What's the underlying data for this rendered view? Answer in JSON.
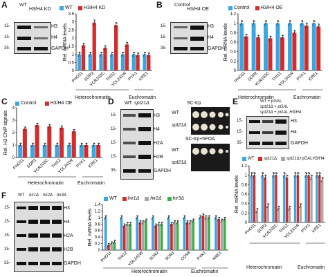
{
  "colors": {
    "wt": "#3aa7e2",
    "red": "#d42b2b",
    "gray": "#a8a8a8",
    "green": "#3bb04a",
    "cyan": "#2fb6c6"
  },
  "panelA": {
    "label": "A",
    "blot": {
      "lanes": [
        "WT",
        "H3/H4 KD"
      ],
      "rows": [
        "H3",
        "H4",
        "GAPDH"
      ],
      "markers": [
        "15-",
        "15-",
        "35-"
      ]
    },
    "legend": [
      "WT",
      "H3/H4 KD"
    ],
    "ylabel": "Rel. mRNA levels",
    "yticks": [
      "0",
      "0.5",
      "1",
      "1.5",
      "2",
      "2.5",
      "3",
      "3.5"
    ],
    "groups": [
      "Heterochromatin",
      "Euchromatin"
    ]
  },
  "panelB": {
    "label": "B",
    "blot": {
      "lanes": [
        "Control",
        "H3/H4 OE"
      ],
      "rows": [
        "H3",
        "H4",
        "GAPDH"
      ],
      "markers": [
        "15-",
        "15-",
        "35-"
      ]
    },
    "legend": [
      "Control",
      "H3/H4 OE"
    ],
    "ylabel": "Rel. mRNA levels",
    "yticks": [
      "0",
      "0.2",
      "0.4",
      "0.6",
      "0.8",
      "1",
      "1.2"
    ],
    "groups": [
      "Heterochromatin",
      "Euchromatin"
    ]
  },
  "panelC": {
    "label": "C",
    "legend": [
      "Control",
      "H3/H4 OE"
    ],
    "ylabel": "Rel. H3 ChIP signals",
    "yticks": [
      "0",
      "1",
      "2",
      "3",
      "4"
    ],
    "groups": [
      "Heterochromatin",
      "Euchromatin"
    ]
  },
  "panelD": {
    "label": "D",
    "blot": {
      "lanes": [
        "WT",
        "spt21Δ"
      ],
      "rows": [
        "H3",
        "H4",
        "H2A",
        "H2B",
        "GAPDH"
      ],
      "markers": [
        "15-",
        "15-",
        "15-",
        "15-",
        "35-"
      ]
    },
    "plates": [
      {
        "title": "SC-trp",
        "rows": [
          "WT",
          "spt21Δ"
        ]
      },
      {
        "title": "SC-trp+5FOA",
        "rows": [
          "WT",
          "spt21Δ"
        ]
      }
    ]
  },
  "panelE": {
    "label": "E",
    "blot": {
      "lanes": [
        "WT + pGAL",
        "spt21Δ + pGAL",
        "spt21Δ + pGAL H3/H4"
      ],
      "rows": [
        "H3",
        "H4",
        "GAPDH"
      ],
      "markers": [
        "15-",
        "15-",
        "35-"
      ]
    },
    "legend": [
      "WT",
      "spt21Δ",
      "spt21Δ+pGALH3/H4"
    ],
    "ylabel": "Rel. mRNA levels",
    "yticks": [
      "0",
      "0.2",
      "0.4",
      "0.6",
      "0.8",
      "1",
      "1.2"
    ],
    "groups": [
      "Heterochromatin",
      "Euchromatin"
    ]
  },
  "panelF": {
    "label": "F",
    "blot": {
      "lanes": [
        "WT",
        "hir1Δ",
        "hir2Δ",
        "hir3Δ"
      ],
      "rows": [
        "H3",
        "H4",
        "H2A",
        "H2B",
        "GAPDH"
      ],
      "markers": [
        "15-",
        "15-",
        "15-",
        "15-",
        "35-"
      ]
    },
    "legend": [
      "WT",
      "hir1Δ",
      "hir2Δ",
      "hir3Δ"
    ],
    "ylabel": "Rel. mRNA levels",
    "yticks": [
      "0",
      "0.2",
      "0.4",
      "0.6",
      "0.8",
      "1",
      "1.2",
      "1.4"
    ],
    "groups": [
      "Heterochromatin",
      "Euchromatin"
    ]
  },
  "chart_data": [
    {
      "panel": "A",
      "type": "bar",
      "ylabel": "Rel. mRNA levels",
      "ylim": [
        0,
        3.5
      ],
      "categories": [
        "PHO11",
        "SOR2",
        "YCR102C",
        "THI12",
        "YDL241W",
        "PYK1",
        "KRE1"
      ],
      "series": [
        {
          "name": "WT",
          "values": [
            1,
            1,
            1,
            1,
            1,
            1,
            1
          ]
        },
        {
          "name": "H3/H4 KD",
          "values": [
            1.55,
            2.95,
            1.4,
            2.8,
            1.6,
            0.95,
            0.95
          ]
        }
      ]
    },
    {
      "panel": "B",
      "type": "bar",
      "ylabel": "Rel. mRNA levels",
      "ylim": [
        0,
        1.2
      ],
      "categories": [
        "PHO11",
        "SOR2",
        "YCR102C",
        "THI12",
        "YDL241W",
        "PYK1",
        "KRE1"
      ],
      "series": [
        {
          "name": "Control",
          "values": [
            1,
            1,
            1,
            1,
            1,
            1,
            1
          ]
        },
        {
          "name": "H3/H4 OE",
          "values": [
            0.72,
            0.7,
            0.68,
            0.7,
            0.8,
            0.95,
            0.93
          ]
        }
      ]
    },
    {
      "panel": "C",
      "type": "bar",
      "ylabel": "Rel. H3 ChIP signals",
      "ylim": [
        0,
        4
      ],
      "categories": [
        "PHO11",
        "SOR2",
        "YCR102C",
        "THI12",
        "YDL241W",
        "PYK1",
        "KRE1"
      ],
      "series": [
        {
          "name": "Control",
          "values": [
            1,
            1,
            1,
            1,
            1,
            1,
            1
          ]
        },
        {
          "name": "H3/H4 OE",
          "values": [
            2.3,
            2.6,
            2.5,
            2.4,
            2.1,
            1.0,
            1.0
          ]
        }
      ]
    },
    {
      "panel": "E",
      "type": "bar",
      "ylabel": "Rel. mRNA levels",
      "ylim": [
        0,
        1.2
      ],
      "categories": [
        "PHO11",
        "SOR2",
        "YCR102C",
        "THI12",
        "YDL241W",
        "PYK1",
        "KRE1"
      ],
      "series": [
        {
          "name": "WT",
          "values": [
            1,
            1,
            1,
            1,
            1,
            1,
            1
          ]
        },
        {
          "name": "spt21Δ",
          "values": [
            1.0,
            0.95,
            1.0,
            0.95,
            1.0,
            1.0,
            1.0
          ]
        },
        {
          "name": "spt21Δ+pGALH3/H4",
          "values": [
            0.25,
            0.35,
            0.3,
            0.3,
            0.35,
            0.95,
            0.9
          ]
        }
      ]
    },
    {
      "panel": "F",
      "type": "bar",
      "ylabel": "Rel. mRNA levels",
      "ylim": [
        0,
        1.4
      ],
      "categories": [
        "PHO11",
        "THI12",
        "YDL241W",
        "SOR2",
        "SOR1",
        "COS8",
        "PYK1",
        "KRE1"
      ],
      "series": [
        {
          "name": "WT",
          "values": [
            1,
            1,
            1,
            1,
            1,
            1,
            1,
            1
          ]
        },
        {
          "name": "hir1Δ",
          "values": [
            0.15,
            0.75,
            0.85,
            0.75,
            0.8,
            0.85,
            1.05,
            0.95
          ]
        },
        {
          "name": "hir2Δ",
          "values": [
            0.2,
            0.8,
            0.85,
            0.8,
            0.85,
            0.85,
            1.0,
            0.9
          ]
        },
        {
          "name": "hir3Δ",
          "values": [
            0.25,
            0.8,
            0.9,
            0.8,
            0.85,
            0.9,
            1.0,
            0.95
          ]
        }
      ]
    }
  ]
}
